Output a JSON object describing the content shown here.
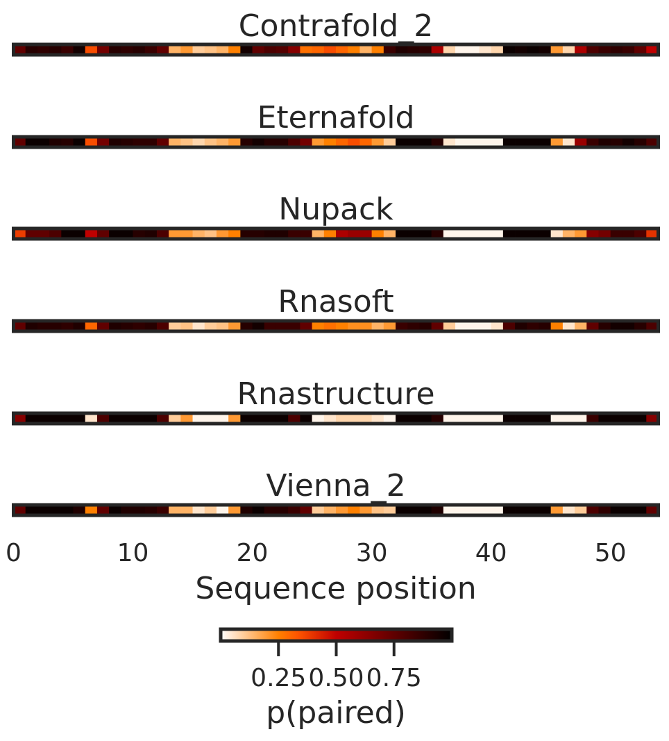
{
  "chart_data": {
    "type": "heatmap",
    "xlabel": "Sequence position",
    "xlim": [
      0,
      54
    ],
    "xticks": [
      0,
      10,
      20,
      30,
      40,
      50
    ],
    "xtick_labels": [
      "0",
      "10",
      "20",
      "30",
      "40",
      "50"
    ],
    "colormap": "gist_heat_r",
    "value_range": [
      0,
      1
    ],
    "colorbar": {
      "label": "p(paired)",
      "ticks": [
        0.25,
        0.5,
        0.75
      ],
      "tick_labels": [
        "0.25",
        "0.50",
        "0.75"
      ],
      "placement": "bottom"
    },
    "series": [
      {
        "name": "Contrafold_2",
        "values": [
          0.75,
          0.9,
          0.88,
          0.9,
          0.85,
          0.95,
          0.35,
          0.7,
          0.9,
          0.88,
          0.9,
          0.85,
          0.75,
          0.15,
          0.2,
          0.1,
          0.12,
          0.15,
          0.25,
          0.95,
          0.75,
          0.8,
          0.78,
          0.65,
          0.28,
          0.3,
          0.35,
          0.3,
          0.25,
          0.15,
          0.25,
          0.85,
          0.92,
          0.9,
          0.88,
          0.55,
          0.08,
          0.02,
          0.02,
          0.05,
          0.08,
          0.97,
          0.95,
          0.97,
          0.95,
          0.2,
          0.08,
          0.55,
          0.8,
          0.85,
          0.88,
          0.85,
          0.75,
          0.5
        ]
      },
      {
        "name": "Eternafold",
        "values": [
          0.75,
          0.97,
          0.97,
          0.92,
          0.9,
          0.97,
          0.35,
          0.7,
          0.92,
          0.9,
          0.88,
          0.88,
          0.75,
          0.15,
          0.12,
          0.08,
          0.12,
          0.15,
          0.2,
          0.9,
          0.95,
          0.9,
          0.9,
          0.8,
          0.7,
          0.2,
          0.25,
          0.3,
          0.35,
          0.3,
          0.2,
          0.1,
          0.97,
          0.97,
          0.97,
          0.9,
          0.05,
          0.02,
          0.02,
          0.02,
          0.02,
          0.97,
          0.97,
          0.97,
          0.97,
          0.2,
          0.05,
          0.6,
          0.85,
          0.92,
          0.9,
          0.95,
          0.9,
          0.8
        ]
      },
      {
        "name": "Nupack",
        "values": [
          0.38,
          0.75,
          0.75,
          0.8,
          0.97,
          0.97,
          0.5,
          0.75,
          0.97,
          0.97,
          0.9,
          0.92,
          0.8,
          0.2,
          0.2,
          0.15,
          0.12,
          0.2,
          0.25,
          0.9,
          0.9,
          0.92,
          0.92,
          0.85,
          0.85,
          0.15,
          0.25,
          0.55,
          0.6,
          0.6,
          0.25,
          0.15,
          0.97,
          0.97,
          0.97,
          0.9,
          0.02,
          0.02,
          0.02,
          0.02,
          0.02,
          0.97,
          0.97,
          0.97,
          0.97,
          0.05,
          0.15,
          0.2,
          0.65,
          0.7,
          0.85,
          0.85,
          0.8,
          0.4
        ]
      },
      {
        "name": "Rnasoft",
        "values": [
          0.75,
          0.92,
          0.9,
          0.9,
          0.88,
          0.92,
          0.3,
          0.75,
          0.92,
          0.9,
          0.88,
          0.9,
          0.8,
          0.1,
          0.12,
          0.05,
          0.1,
          0.12,
          0.2,
          0.9,
          0.95,
          0.85,
          0.85,
          0.85,
          0.75,
          0.25,
          0.28,
          0.25,
          0.22,
          0.22,
          0.15,
          0.2,
          0.85,
          0.88,
          0.9,
          0.75,
          0.1,
          0.02,
          0.02,
          0.02,
          0.05,
          0.8,
          0.92,
          0.88,
          0.9,
          0.25,
          0.05,
          0.15,
          0.75,
          0.9,
          0.95,
          0.95,
          0.9,
          0.8
        ]
      },
      {
        "name": "Rnastructure",
        "values": [
          0.65,
          0.97,
          0.97,
          0.97,
          0.97,
          0.97,
          0.05,
          0.8,
          0.97,
          0.97,
          0.97,
          0.97,
          0.8,
          0.1,
          0.2,
          0.02,
          0.02,
          0.02,
          0.2,
          0.97,
          0.97,
          0.97,
          0.97,
          0.8,
          0.97,
          0.02,
          0.05,
          0.08,
          0.08,
          0.08,
          0.05,
          0.02,
          0.97,
          0.97,
          0.97,
          0.9,
          0.02,
          0.02,
          0.02,
          0.02,
          0.02,
          0.97,
          0.97,
          0.97,
          0.97,
          0.02,
          0.02,
          0.02,
          0.85,
          0.97,
          0.97,
          0.97,
          0.97,
          0.65
        ]
      },
      {
        "name": "Vienna_2",
        "values": [
          0.75,
          0.97,
          0.97,
          0.97,
          0.97,
          0.92,
          0.25,
          0.75,
          0.97,
          0.92,
          0.92,
          0.9,
          0.85,
          0.15,
          0.15,
          0.05,
          0.1,
          0.02,
          0.2,
          0.92,
          0.97,
          0.9,
          0.9,
          0.85,
          0.75,
          0.1,
          0.15,
          0.2,
          0.25,
          0.2,
          0.12,
          0.1,
          0.97,
          0.97,
          0.97,
          0.92,
          0.02,
          0.02,
          0.02,
          0.02,
          0.02,
          0.97,
          0.97,
          0.97,
          0.97,
          0.2,
          0.05,
          0.1,
          0.8,
          0.88,
          0.97,
          0.97,
          0.97,
          0.75
        ]
      }
    ]
  }
}
